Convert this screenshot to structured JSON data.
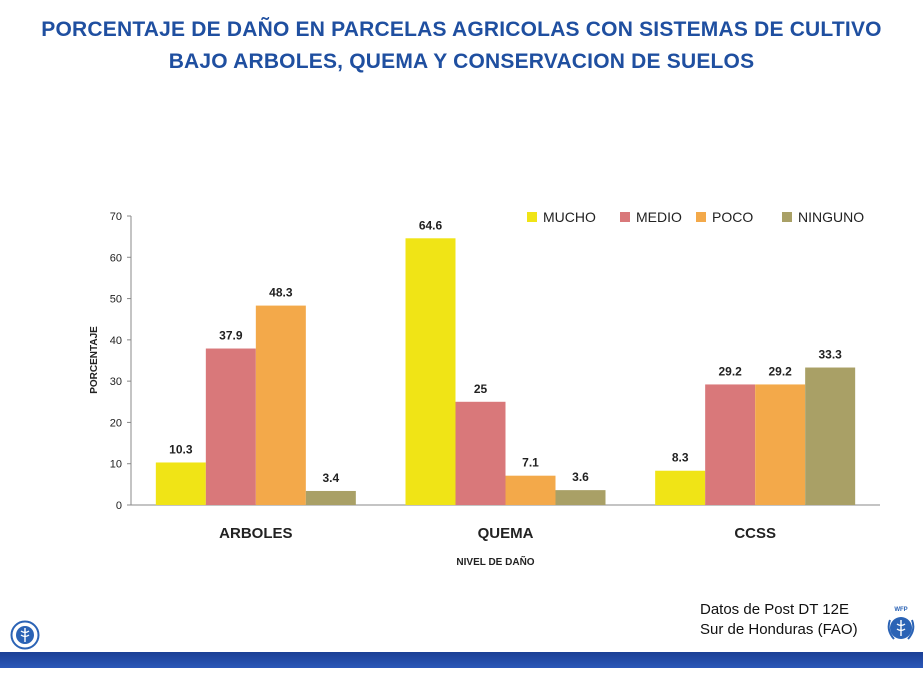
{
  "title": {
    "line1": "PORCENTAJE DE DAÑO EN PARCELAS AGRICOLAS CON SISTEMAS DE CULTIVO",
    "line2": "BAJO ARBOLES, QUEMA Y CONSERVACION DE SUELOS"
  },
  "source": {
    "line1": "Datos de Post DT 12E",
    "line2": "Sur de Honduras  (FAO)"
  },
  "logos": {
    "left": "fao-logo",
    "right": "wfp-logo",
    "right_text": "WFP"
  },
  "chart_data": {
    "type": "bar",
    "categories": [
      "ARBOLES",
      "QUEMA",
      "CCSS"
    ],
    "series": [
      {
        "name": "MUCHO",
        "values": [
          10.3,
          64.6,
          8.3
        ],
        "labels": [
          "10.3",
          "64.6",
          "8.3"
        ],
        "color": "#f0e416"
      },
      {
        "name": "MEDIO",
        "values": [
          37.9,
          25,
          29.2
        ],
        "labels": [
          "37.9",
          "25",
          "29.2"
        ],
        "color": "#d9787a"
      },
      {
        "name": "POCO",
        "values": [
          48.3,
          7.1,
          29.2
        ],
        "labels": [
          "48.3",
          "7.1",
          "29.2"
        ],
        "color": "#f3a94a"
      },
      {
        "name": "NINGUNO",
        "values": [
          3.4,
          3.6,
          33.3
        ],
        "labels": [
          "3.4",
          "3.6",
          "33.3"
        ],
        "color": "#a9a066"
      }
    ],
    "xlabel": "NIVEL DE DAÑO",
    "ylabel": "PORCENTAJE",
    "ylim": [
      0,
      70
    ],
    "yticks": [
      "0",
      "10",
      "20",
      "30",
      "40",
      "50",
      "60",
      "70"
    ],
    "grid": false,
    "legend": "top-right"
  }
}
